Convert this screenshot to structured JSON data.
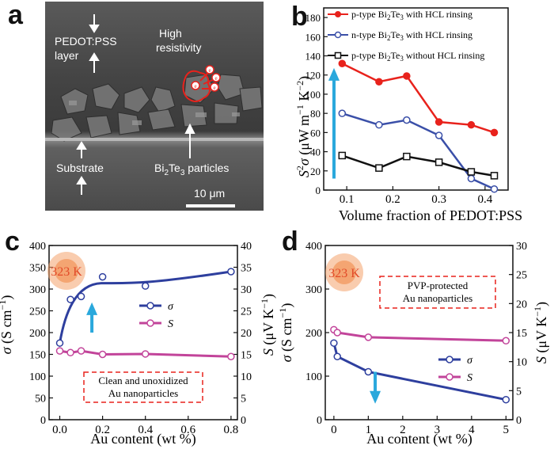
{
  "panels": {
    "a": "a",
    "b": "b",
    "c": "c",
    "d": "d"
  },
  "panel_a": {
    "layer_line1": "PEDOT:PSS",
    "layer_line2": "layer",
    "resist_line1": "High",
    "resist_line2": "resistivity",
    "substrate": "Substrate",
    "particles_pre": "Bi",
    "particles_sub1": "2",
    "particles_mid": "Te",
    "particles_sub2": "3",
    "particles_post": " particles",
    "scale": "10 μm",
    "electron_symbol": "e"
  },
  "chart_data": [
    {
      "id": "b",
      "type": "line",
      "xlabel": "Volume fraction of PEDOT:PSS",
      "ylabel": "S²σ (μW m⁻¹ K⁻²)",
      "ylabel_parts": {
        "s": "S",
        "sup2": "2",
        "sigma": "σ",
        "open": " (μW m",
        "supm1": "−1",
        "k": " K",
        "supm2": "−2",
        "close": ")"
      },
      "xlim": [
        0.05,
        0.45
      ],
      "ylim": [
        0,
        190
      ],
      "xticks": [
        0.1,
        0.2,
        0.3,
        0.4
      ],
      "xtick_labels": [
        "0.1",
        "0.2",
        "0.3",
        "0.4"
      ],
      "yticks": [
        0,
        20,
        40,
        60,
        80,
        100,
        120,
        140,
        160,
        180
      ],
      "ytick_labels": [
        "0",
        "20",
        "40",
        "60",
        "80",
        "100",
        "120",
        "140",
        "160",
        "180"
      ],
      "x": [
        0.09,
        0.17,
        0.23,
        0.3,
        0.37,
        0.42
      ],
      "series": [
        {
          "name": "p-type Bi2Te3 with HCL rinsing",
          "legend_pre": "p-type Bi",
          "legend_mid": "Te",
          "legend_post": " with HCL rinsing",
          "color": "#e8221c",
          "marker": "circle-filled",
          "values": [
            132,
            113,
            119,
            71,
            68,
            60
          ]
        },
        {
          "name": "n-type Bi2Te3 with HCL rinsing",
          "legend_pre": "n-type Bi",
          "legend_mid": "Te",
          "legend_post": " with HCL rinsing",
          "color": "#3a4fa8",
          "marker": "circle-open",
          "values": [
            80,
            68,
            73,
            57,
            12,
            1
          ]
        },
        {
          "name": "p-type Bi2Te3 without HCL rinsing",
          "legend_pre": "p-type Bi",
          "legend_mid": "Te",
          "legend_post": " without HCL rinsing",
          "color": "#111111",
          "marker": "square-open",
          "values": [
            36,
            23,
            35,
            29,
            19,
            15
          ]
        }
      ],
      "subscript_2": "2",
      "subscript_3": "3",
      "arrow": {
        "direction": "up",
        "color": "#2aa8dc"
      }
    },
    {
      "id": "c",
      "type": "line",
      "xlabel": "Au content (wt %)",
      "ylabel_left": "σ (S cm⁻¹)",
      "ylabel_left_parts": {
        "sigma": "σ",
        "open": " (S cm",
        "sup": "−1",
        "close": ")"
      },
      "ylabel_right": "S (μV K⁻¹)",
      "ylabel_right_parts": {
        "s": "S",
        "open": " (μV K",
        "sup": "−1",
        "close": ")"
      },
      "xlim": [
        -0.05,
        0.83
      ],
      "ylim_left": [
        0,
        400
      ],
      "ylim_right": [
        0,
        40
      ],
      "xticks": [
        0.0,
        0.2,
        0.4,
        0.6,
        0.8
      ],
      "xtick_labels": [
        "0.0",
        "0.2",
        "0.4",
        "0.6",
        "0.8"
      ],
      "yticks_left": [
        0,
        50,
        100,
        150,
        200,
        250,
        300,
        350,
        400
      ],
      "ytick_labels_left": [
        "0",
        "50",
        "100",
        "150",
        "200",
        "250",
        "300",
        "350",
        "400"
      ],
      "yticks_right": [
        0,
        5,
        10,
        15,
        20,
        25,
        30,
        35,
        40
      ],
      "ytick_labels_right": [
        "0",
        "5",
        "10",
        "15",
        "20",
        "25",
        "30",
        "35",
        "40"
      ],
      "series": [
        {
          "name": "σ",
          "axis": "left",
          "color": "#2e3f9e",
          "x": [
            0.0,
            0.05,
            0.1,
            0.2,
            0.4,
            0.8
          ],
          "values": [
            176,
            276,
            283,
            328,
            307,
            340
          ]
        },
        {
          "name": "S",
          "axis": "right",
          "color": "#c2449a",
          "x": [
            0.0,
            0.05,
            0.1,
            0.2,
            0.4,
            0.8
          ],
          "values": [
            15.8,
            15.4,
            15.8,
            15.0,
            15.1,
            14.5
          ]
        }
      ],
      "temperature": "323 K",
      "annotation_line1": "Clean and unoxidized",
      "annotation_line2": "Au nanoparticles",
      "arrow": {
        "direction": "up",
        "color": "#2aa8dc"
      }
    },
    {
      "id": "d",
      "type": "line",
      "xlabel": "Au content (wt %)",
      "ylabel_left": "σ (S cm⁻¹)",
      "ylabel_left_parts": {
        "sigma": "σ",
        "open": " (S cm",
        "sup": "−1",
        "close": ")"
      },
      "ylabel_right": "S (μV K⁻¹)",
      "ylabel_right_parts": {
        "s": "S",
        "open": " (μV K",
        "sup": "−1",
        "close": ")"
      },
      "xlim": [
        -0.25,
        5.2
      ],
      "ylim_left": [
        0,
        400
      ],
      "ylim_right": [
        0,
        30
      ],
      "xticks": [
        0,
        1,
        2,
        3,
        4,
        5
      ],
      "xtick_labels": [
        "0",
        "1",
        "2",
        "3",
        "4",
        "5"
      ],
      "yticks_left": [
        0,
        100,
        200,
        300,
        400
      ],
      "ytick_labels_left": [
        "0",
        "100",
        "200",
        "300",
        "400"
      ],
      "yticks_right": [
        0,
        5,
        10,
        15,
        20,
        25,
        30
      ],
      "ytick_labels_right": [
        "0",
        "5",
        "10",
        "15",
        "20",
        "25",
        "30"
      ],
      "series": [
        {
          "name": "σ",
          "axis": "left",
          "color": "#2e3f9e",
          "x": [
            0.0,
            0.1,
            1.0,
            5.0
          ],
          "values": [
            176,
            145,
            110,
            46
          ]
        },
        {
          "name": "S",
          "axis": "right",
          "color": "#c2449a",
          "x": [
            0.0,
            0.1,
            1.0,
            5.0
          ],
          "values": [
            15.5,
            15.0,
            14.2,
            13.6
          ]
        }
      ],
      "temperature": "323 K",
      "annotation_line1": "PVP-protected",
      "annotation_line2": "Au nanoparticles",
      "arrow": {
        "direction": "down",
        "color": "#2aa8dc"
      }
    }
  ]
}
